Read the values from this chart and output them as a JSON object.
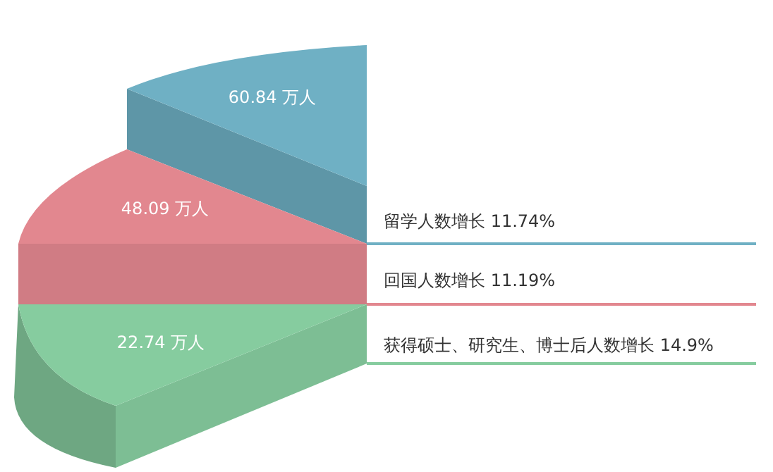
{
  "chart_data": {
    "type": "other",
    "categories": [
      "留学人数增长 11.74%",
      "回国人数增长 11.19%",
      "获得硕士、研究生、博士后人数增长 14.9%"
    ],
    "values": [
      60.84,
      48.09,
      22.74
    ],
    "value_labels": [
      "60.84 万人",
      "48.09 万人",
      "22.74 万人"
    ],
    "colors": [
      "#6fb0c4",
      "#e2878f",
      "#86cc9f"
    ]
  }
}
